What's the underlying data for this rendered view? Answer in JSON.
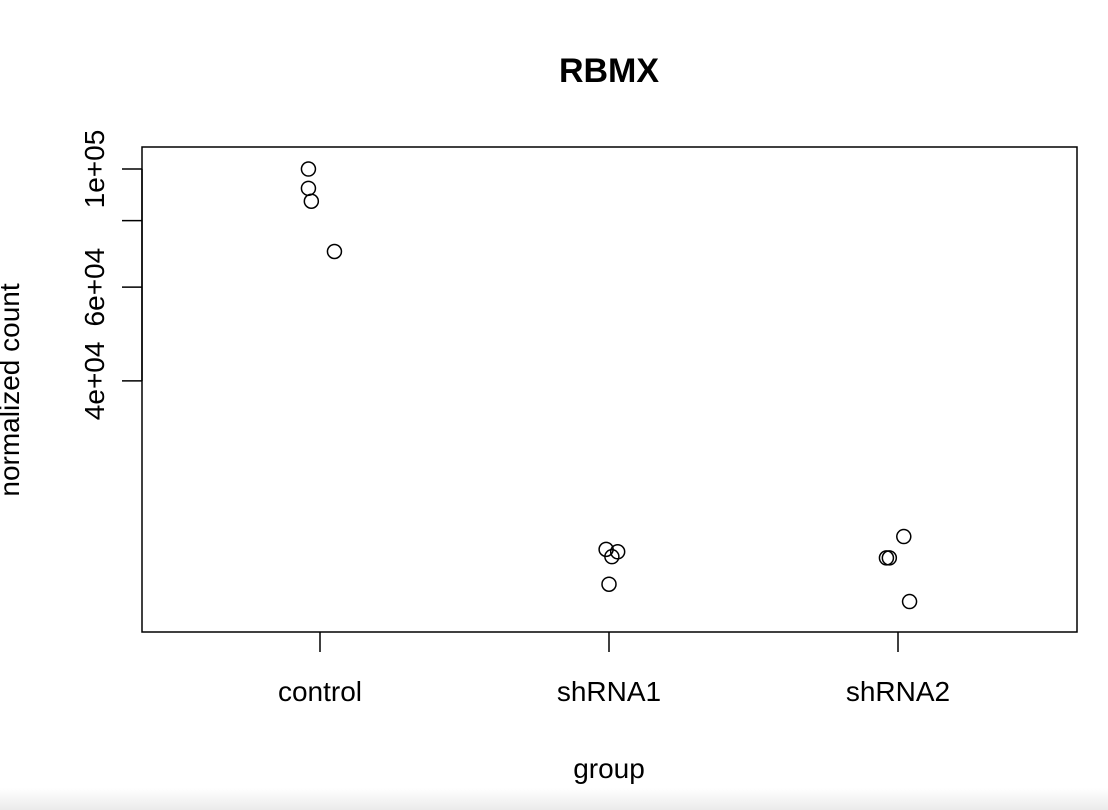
{
  "chart_data": {
    "type": "scatter",
    "title": "RBMX",
    "xlabel": "group",
    "ylabel": "normalized count",
    "categories": [
      "control",
      "shRNA1",
      "shRNA2"
    ],
    "y_scale": "log",
    "ylim": [
      13500,
      110000
    ],
    "y_ticks": [
      {
        "value": 40000,
        "label": "4e+04"
      },
      {
        "value": 60000,
        "label": "6e+04"
      },
      {
        "value": 80000,
        "label": ""
      },
      {
        "value": 100000,
        "label": "1e+05"
      }
    ],
    "points": [
      {
        "group": "control",
        "jitter": -0.04,
        "y": 100000
      },
      {
        "group": "control",
        "jitter": -0.04,
        "y": 92000
      },
      {
        "group": "control",
        "jitter": -0.03,
        "y": 87000
      },
      {
        "group": "control",
        "jitter": 0.05,
        "y": 70000
      },
      {
        "group": "shRNA1",
        "jitter": -0.01,
        "y": 19300
      },
      {
        "group": "shRNA1",
        "jitter": 0.03,
        "y": 19100
      },
      {
        "group": "shRNA1",
        "jitter": 0.01,
        "y": 18700
      },
      {
        "group": "shRNA1",
        "jitter": 0.0,
        "y": 16600
      },
      {
        "group": "shRNA2",
        "jitter": 0.02,
        "y": 20400
      },
      {
        "group": "shRNA2",
        "jitter": -0.03,
        "y": 18600
      },
      {
        "group": "shRNA2",
        "jitter": -0.04,
        "y": 18600
      },
      {
        "group": "shRNA2",
        "jitter": 0.04,
        "y": 15400
      }
    ],
    "grid": false,
    "legend": "none"
  }
}
